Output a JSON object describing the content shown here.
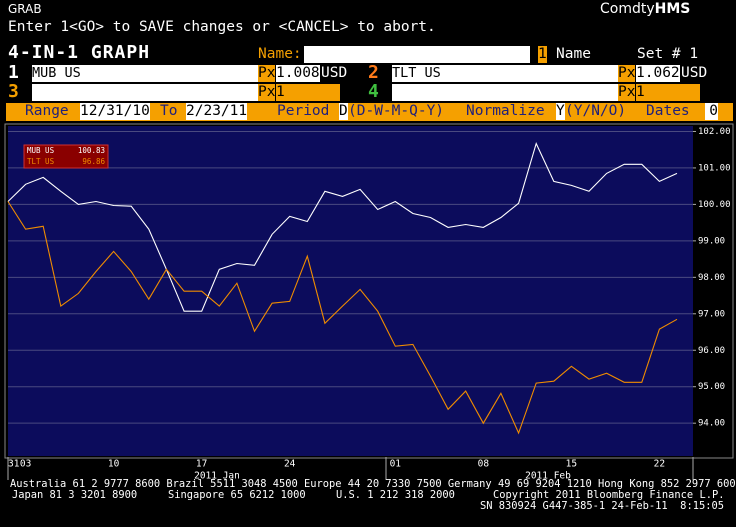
{
  "header": {
    "function": "GRAB",
    "brand": "Comdty",
    "brand_bold": "HMS",
    "instruction": "Enter 1<GO> to SAVE changes or <CANCEL> to abort."
  },
  "form": {
    "title": "4-IN-1 GRAPH",
    "name_label": "Name:",
    "name_number": "1",
    "name_text": "Name",
    "set_label": "Set # 1",
    "securities": [
      {
        "slot": "1",
        "ticker": "MUB US",
        "px_label": "Px",
        "px": "1.008",
        "currency": "USD"
      },
      {
        "slot": "2",
        "ticker": "TLT US",
        "px_label": "Px",
        "px": "1.062",
        "currency": "USD"
      },
      {
        "slot": "3",
        "px_label": "Px",
        "px": "1"
      },
      {
        "slot": "4",
        "px_label": "Px",
        "px": "1"
      }
    ],
    "range_bar": {
      "range_label": "Range",
      "start": "12/31/10",
      "to_label": "To",
      "end": "2/23/11",
      "period_label": "Period",
      "period": "D",
      "period_options": "(D-W-M-Q-Y)",
      "normalize_label": "Normalize",
      "normalize": "Y",
      "normalize_options": "(Y/N/O)",
      "dates_label": "Dates",
      "dates": "0"
    }
  },
  "chart_data": {
    "type": "line",
    "categories": [
      "31",
      "03",
      null,
      null,
      null,
      null,
      "10",
      null,
      null,
      null,
      null,
      "17",
      null,
      null,
      null,
      null,
      "24",
      null,
      null,
      null,
      null,
      null,
      "01",
      null,
      null,
      null,
      null,
      "08",
      null,
      null,
      null,
      null,
      "15",
      null,
      null,
      null,
      null,
      "22",
      null
    ],
    "month_labels": [
      "2011 Jan",
      "2011 Feb"
    ],
    "series": [
      {
        "name": "MUB US",
        "legend_value": 100.83,
        "color": "#ffffff",
        "values": [
          100.08,
          100.55,
          100.74,
          100.36,
          100.0,
          100.08,
          99.97,
          99.95,
          99.32,
          98.22,
          97.07,
          97.07,
          98.22,
          98.38,
          98.33,
          99.18,
          99.67,
          99.53,
          100.36,
          100.22,
          100.41,
          99.86,
          100.08,
          99.75,
          99.64,
          99.37,
          99.45,
          99.37,
          99.64,
          100.03,
          101.67,
          100.63,
          100.52,
          100.36,
          100.85,
          101.1,
          101.1,
          100.63,
          100.85
        ]
      },
      {
        "name": "TLT US",
        "legend_value": 96.86,
        "color": "#f08c00",
        "values": [
          100.08,
          99.32,
          99.4,
          97.21,
          97.56,
          98.16,
          98.71,
          98.16,
          97.4,
          98.22,
          97.62,
          97.62,
          97.21,
          97.84,
          96.52,
          97.29,
          97.34,
          98.58,
          96.74,
          97.21,
          97.67,
          97.07,
          96.11,
          96.16,
          95.29,
          94.38,
          94.88,
          94.0,
          94.82,
          93.73,
          95.1,
          95.15,
          95.56,
          95.21,
          95.37,
          95.12,
          95.12,
          96.58,
          96.85
        ]
      }
    ],
    "ylim": [
      93.1,
      102.15
    ],
    "yticks": [
      {
        "value": 94,
        "label": "94.00"
      },
      {
        "value": 95,
        "label": "95.00"
      },
      {
        "value": 96,
        "label": "96.00"
      },
      {
        "value": 97,
        "label": "97.00"
      },
      {
        "value": 98,
        "label": "98.00"
      },
      {
        "value": 99,
        "label": "99.00"
      },
      {
        "value": 100,
        "label": "100.00"
      },
      {
        "value": 101,
        "label": "101.00"
      },
      {
        "value": 102,
        "label": "102.00"
      }
    ],
    "grid": true
  },
  "footer": {
    "line1": "Australia 61 2 9777 8600 Brazil 5511 3048 4500 Europe 44 20 7330 7500 Germany 49 69 9204 1210 Hong Kong 852 2977 6000",
    "line2": [
      "Japan 81 3 3201 8900",
      "Singapore 65 6212 1000",
      "U.S. 1 212 318 2000",
      "Copyright 2011 Bloomberg Finance L.P."
    ],
    "line3": "SN 830924 G447-385-1 24-Feb-11  8:15:05"
  }
}
